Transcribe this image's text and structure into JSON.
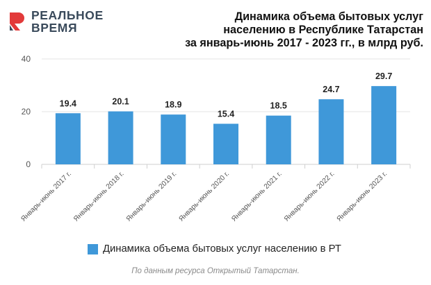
{
  "logo": {
    "line1": "РЕАЛЬНОЕ",
    "line2": "ВРЕМЯ",
    "accent_color": "#e23a3a",
    "text_color": "#3a4a5b"
  },
  "title_lines": [
    "Динамика объема бытовых услуг",
    "населению в Республике Татарстан",
    "за январь-июнь 2017 - 2023 гг., в млрд руб."
  ],
  "legend": {
    "label": "Динамика объема бытовых услуг населению в РТ",
    "color": "#3f98d9"
  },
  "source": "По данным ресурса Открытый Татарстан.",
  "chart_data": {
    "type": "bar",
    "title": "Динамика объема бытовых услуг населению в Республике Татарстан за январь-июнь 2017 - 2023 гг., в млрд руб.",
    "categories": [
      "Январь-июнь 2017 г.",
      "Январь-июнь 2018 г.",
      "Январь-июнь 2019 г.",
      "Январь-июнь 2020 г.",
      "Январь-июнь 2021 г.",
      "Январь-июнь 2022 г.",
      "Январь-июнь 2023 г."
    ],
    "series": [
      {
        "name": "Динамика объема бытовых услуг населению в РТ",
        "values": [
          19.4,
          20.1,
          18.9,
          15.4,
          18.5,
          24.7,
          29.7
        ],
        "labels": [
          "19.4",
          "20.1",
          "18.9",
          "15.4",
          "18.5",
          "24.7",
          "29.7"
        ],
        "color": "#3f98d9"
      }
    ],
    "ylim": [
      0,
      40
    ],
    "yticks": [
      0,
      20,
      40
    ],
    "grid": true,
    "legend_position": "bottom"
  }
}
